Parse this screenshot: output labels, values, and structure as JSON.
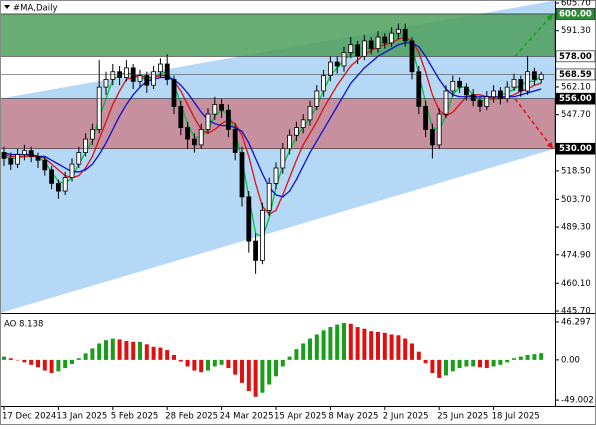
{
  "chart_data": {
    "type": "candlestick",
    "title": "#MA,Daily",
    "categories": [
      "17 Dec 2024",
      null,
      null,
      null,
      null,
      null,
      null,
      null,
      "13 Jan 2025",
      null,
      null,
      null,
      null,
      null,
      null,
      null,
      "5 Feb 2025",
      null,
      null,
      null,
      null,
      null,
      null,
      null,
      "28 Feb 2025",
      null,
      null,
      null,
      null,
      null,
      null,
      null,
      "24 Mar 2025",
      null,
      null,
      null,
      null,
      null,
      null,
      null,
      "15 Apr 2025",
      null,
      null,
      null,
      null,
      null,
      null,
      null,
      "8 May 2025",
      null,
      null,
      null,
      null,
      null,
      null,
      null,
      "2 Jun 2025",
      null,
      null,
      null,
      null,
      null,
      null,
      null,
      "25 Jun 2025",
      null,
      null,
      null,
      null,
      null,
      null,
      null,
      "18 Jul 2025",
      null,
      null,
      null,
      null,
      null,
      null,
      null
    ],
    "candles": [
      [
        528,
        531,
        521,
        525
      ],
      [
        525,
        528,
        519,
        522
      ],
      [
        522,
        530,
        520,
        527
      ],
      [
        527,
        532,
        524,
        529
      ],
      [
        529,
        531,
        523,
        526
      ],
      [
        526,
        528,
        520,
        524
      ],
      [
        524,
        526,
        516,
        519
      ],
      [
        519,
        521,
        509,
        512
      ],
      [
        512,
        514,
        504,
        508
      ],
      [
        508,
        518,
        506,
        515
      ],
      [
        515,
        525,
        513,
        522
      ],
      [
        522,
        531,
        520,
        528
      ],
      [
        528,
        538,
        526,
        535
      ],
      [
        535,
        543,
        532,
        540
      ],
      [
        540,
        576,
        538,
        562
      ],
      [
        562,
        570,
        558,
        566
      ],
      [
        566,
        574,
        563,
        570
      ],
      [
        570,
        573,
        563,
        567
      ],
      [
        567,
        576,
        565,
        572
      ],
      [
        572,
        574,
        561,
        565
      ],
      [
        565,
        571,
        562,
        568
      ],
      [
        568,
        570,
        559,
        563
      ],
      [
        563,
        573,
        561,
        570
      ],
      [
        570,
        577,
        567,
        574
      ],
      [
        574,
        579,
        563,
        566
      ],
      [
        566,
        568,
        548,
        552
      ],
      [
        552,
        555,
        537,
        541
      ],
      [
        541,
        544,
        530,
        535
      ],
      [
        535,
        538,
        528,
        532
      ],
      [
        532,
        543,
        530,
        540
      ],
      [
        540,
        551,
        538,
        548
      ],
      [
        548,
        557,
        545,
        553
      ],
      [
        553,
        556,
        546,
        550
      ],
      [
        550,
        553,
        536,
        540
      ],
      [
        540,
        543,
        524,
        528
      ],
      [
        528,
        531,
        500,
        505
      ],
      [
        505,
        508,
        476,
        482
      ],
      [
        482,
        486,
        465,
        472
      ],
      [
        472,
        502,
        470,
        498
      ],
      [
        498,
        515,
        495,
        512
      ],
      [
        512,
        523,
        509,
        520
      ],
      [
        520,
        533,
        517,
        530
      ],
      [
        530,
        540,
        527,
        537
      ],
      [
        537,
        544,
        534,
        541
      ],
      [
        541,
        548,
        538,
        545
      ],
      [
        545,
        555,
        542,
        552
      ],
      [
        552,
        563,
        550,
        560
      ],
      [
        560,
        571,
        557,
        568
      ],
      [
        568,
        578,
        565,
        575
      ],
      [
        575,
        578,
        569,
        573
      ],
      [
        573,
        583,
        570,
        580
      ],
      [
        580,
        588,
        577,
        584
      ],
      [
        584,
        586,
        574,
        578
      ],
      [
        578,
        589,
        576,
        586
      ],
      [
        586,
        588,
        579,
        582
      ],
      [
        582,
        591,
        580,
        588
      ],
      [
        588,
        590,
        582,
        585
      ],
      [
        585,
        593,
        583,
        590
      ],
      [
        590,
        595,
        587,
        592
      ],
      [
        592,
        595,
        583,
        586
      ],
      [
        586,
        588,
        566,
        570
      ],
      [
        570,
        573,
        548,
        552
      ],
      [
        552,
        555,
        536,
        540
      ],
      [
        540,
        543,
        525,
        532
      ],
      [
        532,
        551,
        530,
        548
      ],
      [
        548,
        563,
        546,
        560
      ],
      [
        560,
        568,
        557,
        565
      ],
      [
        565,
        567,
        559,
        562
      ],
      [
        562,
        564,
        555,
        558
      ],
      [
        558,
        561,
        552,
        555
      ],
      [
        555,
        557,
        549,
        552
      ],
      [
        552,
        560,
        550,
        557
      ],
      [
        557,
        563,
        554,
        560
      ],
      [
        560,
        562,
        553,
        556
      ],
      [
        556,
        565,
        554,
        562
      ],
      [
        562,
        569,
        560,
        566
      ],
      [
        566,
        568,
        557,
        560
      ],
      [
        560,
        578,
        558,
        570
      ],
      [
        570,
        572,
        563,
        566
      ],
      [
        566,
        570,
        564,
        568.59
      ]
    ],
    "candle_color": "#000000",
    "series": [
      {
        "color": "#00c040",
        "values": [
          526,
          525,
          525,
          526,
          527,
          526,
          523,
          518,
          513,
          512,
          515,
          522,
          528,
          534,
          546,
          556,
          566,
          568,
          570,
          568,
          568,
          565,
          567,
          569,
          570,
          564,
          553,
          543,
          536,
          536,
          540,
          547,
          550,
          548,
          539,
          524,
          505,
          486,
          484,
          494,
          510,
          521,
          529,
          536,
          541,
          546,
          552,
          560,
          568,
          572,
          576,
          579,
          581,
          583,
          582,
          585,
          585,
          588,
          589,
          589,
          583,
          569,
          554,
          541,
          540,
          547,
          558,
          562,
          562,
          558,
          555,
          555,
          556,
          558,
          559,
          561,
          563,
          565,
          565,
          568
        ]
      },
      {
        "color": "#e01010",
        "values": [
          527,
          526,
          526,
          526,
          526,
          526,
          525,
          522,
          519,
          516,
          515,
          516,
          520,
          526,
          535,
          544,
          553,
          560,
          566,
          567,
          568,
          567,
          567,
          568,
          568,
          565,
          560,
          553,
          546,
          540,
          538,
          540,
          543,
          545,
          543,
          537,
          526,
          512,
          500,
          496,
          498,
          506,
          515,
          524,
          532,
          538,
          544,
          551,
          557,
          563,
          568,
          573,
          576,
          579,
          581,
          583,
          584,
          585,
          587,
          588,
          586,
          580,
          570,
          558,
          550,
          547,
          549,
          553,
          557,
          558,
          558,
          557,
          556,
          556,
          557,
          558,
          560,
          561,
          563,
          564
        ]
      },
      {
        "color": "#1010d0",
        "values": [
          528,
          527,
          527,
          527,
          527,
          526,
          526,
          524,
          522,
          520,
          518,
          518,
          519,
          522,
          527,
          533,
          540,
          547,
          553,
          558,
          562,
          565,
          566,
          567,
          567,
          566,
          563,
          559,
          554,
          549,
          545,
          543,
          542,
          542,
          541,
          539,
          533,
          525,
          517,
          510,
          506,
          505,
          508,
          514,
          521,
          528,
          534,
          540,
          546,
          552,
          558,
          564,
          568,
          572,
          575,
          578,
          580,
          582,
          584,
          585,
          585,
          583,
          578,
          572,
          566,
          561,
          558,
          557,
          557,
          557,
          557,
          557,
          557,
          557,
          557,
          557,
          558,
          559,
          560,
          561
        ]
      }
    ],
    "ylim": [
      444.66,
      607.26
    ],
    "yticks": [
      {
        "value": 605.7,
        "label": "605.70"
      },
      {
        "value": 591.3,
        "label": "591.30"
      },
      {
        "value": 562.1,
        "label": "562.10"
      },
      {
        "value": 547.7,
        "label": "547.70"
      },
      {
        "value": 518.5,
        "label": "518.50"
      },
      {
        "value": 503.7,
        "label": "503.70"
      },
      {
        "value": 489.3,
        "label": "489.30"
      },
      {
        "value": 474.9,
        "label": "474.90"
      },
      {
        "value": 460.1,
        "label": "460.10"
      },
      {
        "value": 445.7,
        "label": "445.70"
      }
    ],
    "channel": {
      "upper": [
        556,
        607
      ],
      "lower": [
        444.66,
        530
      ],
      "color": "#b5d8f7"
    },
    "zones": [
      {
        "from": 578,
        "to": 600,
        "color": "#4e9f5a"
      },
      {
        "from": 530,
        "to": 556,
        "color": "#c9848f"
      }
    ],
    "levels": [
      {
        "value": 600,
        "label": "600.00",
        "color": "#2e8b3a"
      },
      {
        "value": 578,
        "label": "578.00",
        "color": "#ffffff"
      },
      {
        "value": 556,
        "label": "556.00",
        "color": "#000000"
      },
      {
        "value": 530,
        "label": "530.00",
        "color": "#000000"
      }
    ],
    "last_price": {
      "value": 568.59,
      "label": "568.59"
    },
    "arrows": [
      {
        "from": 578,
        "to": 600,
        "color": "#1a9e1a"
      },
      {
        "from": 556,
        "to": 530,
        "color": "#e01010"
      }
    ],
    "indicator": {
      "label": "AO 8.138",
      "values": [
        4,
        2,
        0,
        -3,
        -6,
        -9,
        -13,
        -16,
        -14,
        -10,
        -5,
        2,
        8,
        14,
        20,
        24,
        26,
        25,
        23,
        22,
        22,
        19,
        16,
        15,
        12,
        6,
        -2,
        -8,
        -13,
        -15,
        -13,
        -8,
        -6,
        -10,
        -18,
        -28,
        -38,
        -45,
        -40,
        -30,
        -20,
        -8,
        4,
        13,
        20,
        26,
        31,
        36,
        40,
        43,
        45,
        44,
        40,
        38,
        35,
        34,
        33,
        31,
        30,
        26,
        20,
        10,
        -4,
        -16,
        -22,
        -19,
        -14,
        -10,
        -8,
        -8,
        -9,
        -10,
        -8,
        -6,
        -3,
        2,
        4,
        6,
        7,
        8.138
      ],
      "up_color": "#1a9e1a",
      "down_color": "#e01010",
      "ylim": [
        -55,
        53.5
      ],
      "yticks": [
        46.297,
        {
          "value": 0,
          "label": "0.00"
        },
        -49.002
      ]
    }
  }
}
